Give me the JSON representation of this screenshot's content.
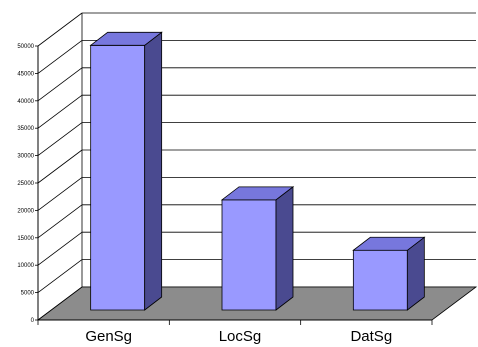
{
  "chart_data": {
    "type": "bar",
    "categories": [
      "GenSg",
      "LocSg",
      "DatSg"
    ],
    "values": [
      48300,
      20100,
      10900
    ],
    "ylim": [
      0,
      50000
    ],
    "yticks": [
      0,
      5000,
      10000,
      15000,
      20000,
      25000,
      30000,
      35000,
      40000,
      45000,
      50000
    ],
    "ytick_labels": [
      "0",
      "5000",
      "10000",
      "15000",
      "20000",
      "25000",
      "30000",
      "35000",
      "40000",
      "45000",
      "50000"
    ],
    "grid": true,
    "legend": "none",
    "three_d": true,
    "colors": {
      "bar_front": "#9999ff",
      "bar_top": "#7777dd",
      "bar_side": "#4a4a90",
      "floor": "#8c8c8c",
      "wall": "#ffffff",
      "line": "#000000"
    }
  }
}
